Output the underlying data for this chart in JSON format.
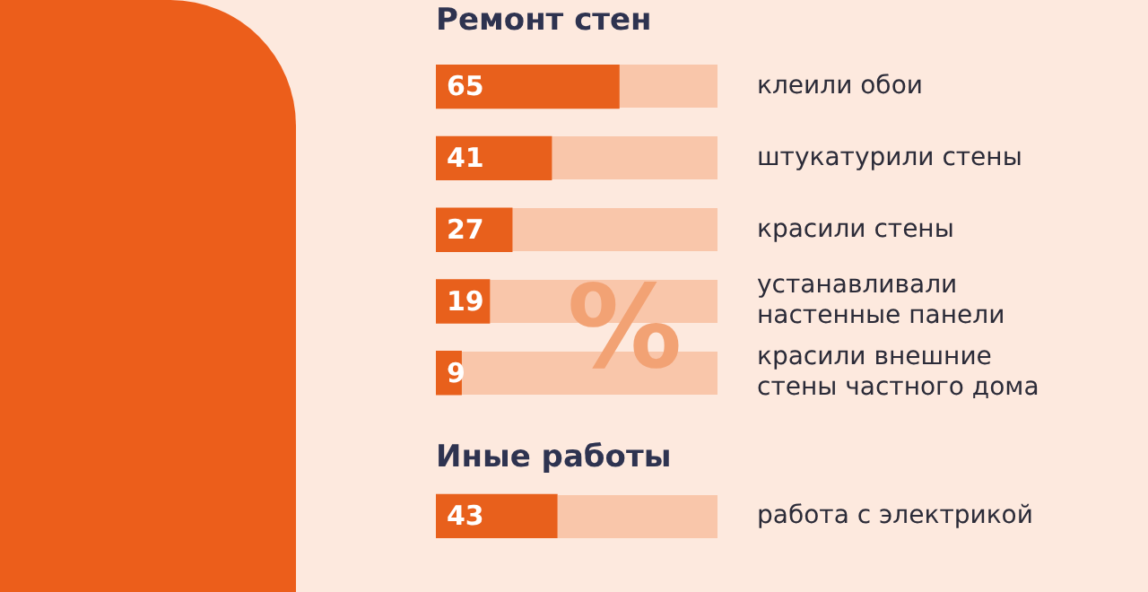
{
  "chart_data": {
    "type": "bar",
    "orientation": "horizontal",
    "title": "Ремонт стен",
    "categories": [
      "клеили обои",
      "штукатурили стены",
      "красили стены",
      "устанавливали настенные панели",
      "красили внешние стены частного дома",
      null,
      "работа с электрикой"
    ],
    "values": [
      65,
      41,
      27,
      19,
      9,
      null,
      43
    ],
    "color": "#e8601c",
    "data_labels": true,
    "legend": false,
    "grid": false,
    "annotations": [
      "%",
      "Иные работы"
    ]
  }
}
